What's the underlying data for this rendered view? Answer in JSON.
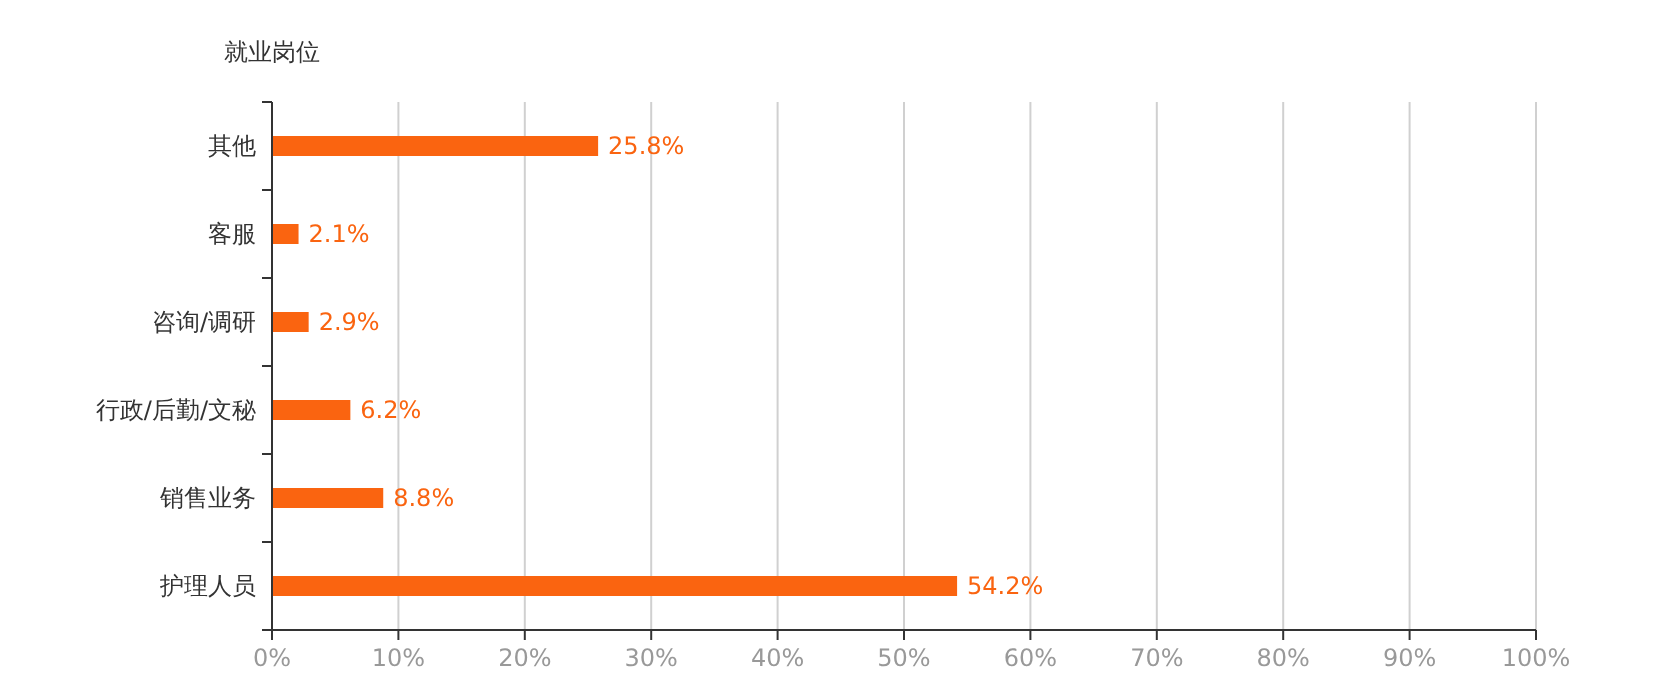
{
  "chart_data": {
    "type": "bar",
    "orientation": "horizontal",
    "ylabel": "就业岗位",
    "categories": [
      "其他",
      "客服",
      "咨询/调研",
      "行政/后勤/文秘",
      "销售业务",
      "护理人员"
    ],
    "values": [
      25.8,
      2.1,
      2.9,
      6.2,
      8.8,
      54.2
    ],
    "value_labels": [
      "25.8%",
      "2.1%",
      "2.9%",
      "6.2%",
      "8.8%",
      "54.2%"
    ],
    "color": "#fa6410",
    "xlim": [
      0,
      100
    ],
    "xticks": [
      {
        "value": 0,
        "label": "0%"
      },
      {
        "value": 10,
        "label": "10%"
      },
      {
        "value": 20,
        "label": "20%"
      },
      {
        "value": 30,
        "label": "30%"
      },
      {
        "value": 40,
        "label": "40%"
      },
      {
        "value": 50,
        "label": "50%"
      },
      {
        "value": 60,
        "label": "60%"
      },
      {
        "value": 70,
        "label": "70%"
      },
      {
        "value": 80,
        "label": "80%"
      },
      {
        "value": 90,
        "label": "90%"
      },
      {
        "value": 100,
        "label": "100%"
      }
    ],
    "grid": "x"
  }
}
